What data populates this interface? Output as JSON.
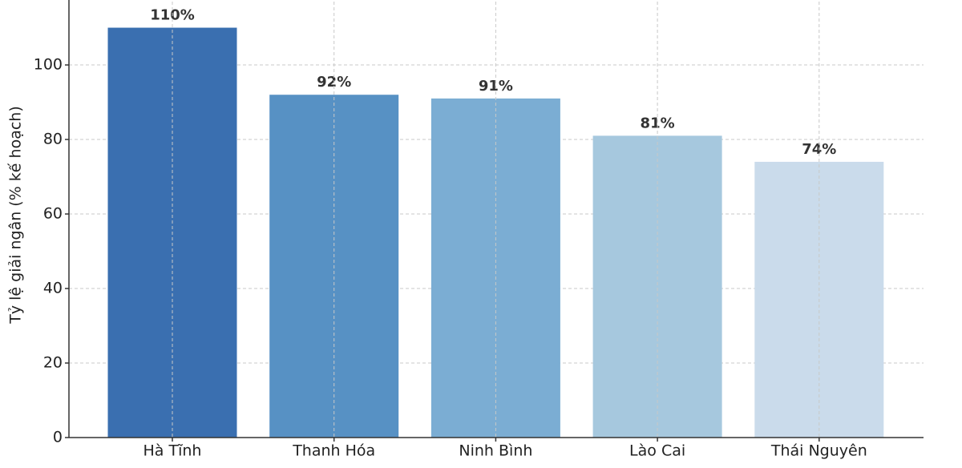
{
  "chart_data": {
    "type": "bar",
    "y_label": "Tỷ lệ giải ngân (% kế hoạch)",
    "categories": [
      "Hà Tĩnh",
      "Thanh Hóa",
      "Ninh Bình",
      "Lào Cai",
      "Thái Nguyên"
    ],
    "values": [
      110,
      92,
      91,
      81,
      74
    ],
    "value_labels": [
      "110%",
      "92%",
      "91%",
      "81%",
      "74%"
    ],
    "colors": [
      "#3a6fb0",
      "#5791c4",
      "#7badd3",
      "#a6c8de",
      "#cadbeb"
    ],
    "ylim": [
      0,
      117
    ],
    "yticks": [
      0,
      20,
      40,
      60,
      80,
      100
    ],
    "grid": true
  }
}
